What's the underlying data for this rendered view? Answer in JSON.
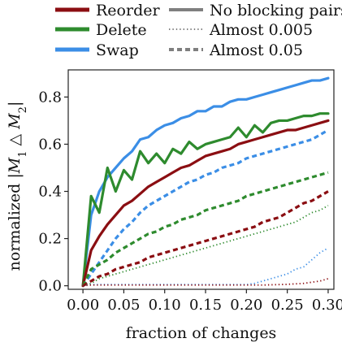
{
  "chart_data": {
    "type": "line",
    "title": "",
    "xlabel": "fraction of changes",
    "ylabel": "normalized |M_1 △ M_2|",
    "xlim": [
      -0.018,
      0.307
    ],
    "ylim": [
      -0.015,
      0.915
    ],
    "x_ticks": [
      0.0,
      0.05,
      0.1,
      0.15,
      0.2,
      0.25,
      0.3
    ],
    "x_tick_labels": [
      "0.00",
      "0.05",
      "0.10",
      "0.15",
      "0.20",
      "0.25",
      "0.30"
    ],
    "y_ticks": [
      0.0,
      0.2,
      0.4,
      0.6,
      0.8
    ],
    "y_tick_labels": [
      "0.0",
      "0.2",
      "0.4",
      "0.6",
      "0.8"
    ],
    "grid": false,
    "legend_placement": "top, outside the plot",
    "legend": [
      {
        "label": "Reorder",
        "kind": "color",
        "color": "#8b0e12"
      },
      {
        "label": "No blocking pairs",
        "kind": "style",
        "color": "#7f7f7f",
        "dash": "solid"
      },
      {
        "label": "Delete",
        "kind": "color",
        "color": "#2e8b2e"
      },
      {
        "label": "Almost 0.005",
        "kind": "style",
        "color": "#7f7f7f",
        "dash": "dotted"
      },
      {
        "label": "Swap",
        "kind": "color",
        "color": "#3b8ee6"
      },
      {
        "label": "Almost 0.05",
        "kind": "style",
        "color": "#7f7f7f",
        "dash": "dashed"
      }
    ],
    "x": [
      0.0,
      0.01,
      0.02,
      0.03,
      0.04,
      0.05,
      0.06,
      0.07,
      0.08,
      0.09,
      0.1,
      0.11,
      0.12,
      0.13,
      0.14,
      0.15,
      0.16,
      0.17,
      0.18,
      0.19,
      0.2,
      0.21,
      0.22,
      0.23,
      0.24,
      0.25,
      0.26,
      0.27,
      0.28,
      0.29,
      0.3
    ],
    "series": [
      {
        "name": "Swap",
        "group": "Swap",
        "dash": "solid",
        "color": "#3b8ee6",
        "values": [
          0.0,
          0.3,
          0.4,
          0.46,
          0.5,
          0.54,
          0.57,
          0.62,
          0.63,
          0.66,
          0.68,
          0.69,
          0.71,
          0.72,
          0.74,
          0.74,
          0.76,
          0.76,
          0.78,
          0.79,
          0.79,
          0.8,
          0.81,
          0.82,
          0.83,
          0.84,
          0.85,
          0.86,
          0.87,
          0.87,
          0.88
        ]
      },
      {
        "name": "Delete",
        "group": "Delete",
        "dash": "solid",
        "color": "#2e8b2e",
        "values": [
          0.0,
          0.38,
          0.31,
          0.5,
          0.4,
          0.49,
          0.45,
          0.57,
          0.52,
          0.56,
          0.52,
          0.58,
          0.56,
          0.61,
          0.58,
          0.6,
          0.61,
          0.62,
          0.63,
          0.67,
          0.63,
          0.68,
          0.65,
          0.69,
          0.7,
          0.7,
          0.71,
          0.72,
          0.72,
          0.73,
          0.73
        ]
      },
      {
        "name": "Reorder",
        "group": "Reorder",
        "dash": "solid",
        "color": "#8b0e12",
        "values": [
          0.0,
          0.15,
          0.21,
          0.26,
          0.3,
          0.34,
          0.36,
          0.39,
          0.42,
          0.44,
          0.46,
          0.48,
          0.5,
          0.51,
          0.53,
          0.55,
          0.56,
          0.57,
          0.58,
          0.6,
          0.61,
          0.62,
          0.63,
          0.64,
          0.65,
          0.66,
          0.66,
          0.67,
          0.68,
          0.69,
          0.7
        ]
      },
      {
        "name": "Swap – Almost 0.05",
        "group": "Swap",
        "dash": "dashed",
        "color": "#3b8ee6",
        "values": [
          0.0,
          0.05,
          0.1,
          0.15,
          0.2,
          0.24,
          0.27,
          0.31,
          0.34,
          0.36,
          0.38,
          0.4,
          0.42,
          0.44,
          0.45,
          0.47,
          0.48,
          0.5,
          0.51,
          0.52,
          0.54,
          0.55,
          0.56,
          0.57,
          0.58,
          0.59,
          0.6,
          0.61,
          0.62,
          0.64,
          0.66
        ]
      },
      {
        "name": "Delete – Almost 0.05",
        "group": "Delete",
        "dash": "dashed",
        "color": "#2e8b2e",
        "values": [
          0.0,
          0.07,
          0.09,
          0.11,
          0.14,
          0.16,
          0.18,
          0.2,
          0.22,
          0.23,
          0.25,
          0.26,
          0.28,
          0.29,
          0.3,
          0.32,
          0.33,
          0.34,
          0.35,
          0.36,
          0.38,
          0.39,
          0.4,
          0.41,
          0.42,
          0.43,
          0.44,
          0.45,
          0.46,
          0.47,
          0.48
        ]
      },
      {
        "name": "Reorder – Almost 0.05",
        "group": "Reorder",
        "dash": "dashed",
        "color": "#8b0e12",
        "values": [
          0.0,
          0.02,
          0.04,
          0.05,
          0.07,
          0.08,
          0.09,
          0.1,
          0.12,
          0.13,
          0.14,
          0.15,
          0.16,
          0.17,
          0.18,
          0.19,
          0.2,
          0.21,
          0.22,
          0.23,
          0.24,
          0.25,
          0.27,
          0.28,
          0.29,
          0.31,
          0.33,
          0.35,
          0.36,
          0.38,
          0.4
        ]
      },
      {
        "name": "Delete – Almost 0.005",
        "group": "Delete",
        "dash": "dotted",
        "color": "#2e8b2e",
        "values": [
          0.0,
          0.01,
          0.03,
          0.04,
          0.05,
          0.06,
          0.07,
          0.08,
          0.09,
          0.1,
          0.11,
          0.12,
          0.13,
          0.14,
          0.15,
          0.16,
          0.17,
          0.18,
          0.19,
          0.2,
          0.21,
          0.22,
          0.23,
          0.24,
          0.25,
          0.26,
          0.27,
          0.29,
          0.31,
          0.32,
          0.34
        ]
      },
      {
        "name": "Swap – Almost 0.005",
        "group": "Swap",
        "dash": "dotted",
        "color": "#3b8ee6",
        "values": [
          0.0,
          0.005,
          0.005,
          0.005,
          0.005,
          0.005,
          0.005,
          0.005,
          0.005,
          0.005,
          0.005,
          0.005,
          0.005,
          0.005,
          0.005,
          0.005,
          0.005,
          0.005,
          0.005,
          0.005,
          0.005,
          0.01,
          0.02,
          0.03,
          0.04,
          0.05,
          0.07,
          0.08,
          0.11,
          0.14,
          0.16
        ]
      },
      {
        "name": "Reorder – Almost 0.005",
        "group": "Reorder",
        "dash": "dotted",
        "color": "#8b0e12",
        "values": [
          0.0,
          0.003,
          0.003,
          0.003,
          0.003,
          0.003,
          0.003,
          0.003,
          0.003,
          0.003,
          0.003,
          0.003,
          0.003,
          0.003,
          0.003,
          0.003,
          0.003,
          0.003,
          0.003,
          0.003,
          0.003,
          0.003,
          0.003,
          0.004,
          0.005,
          0.006,
          0.008,
          0.01,
          0.015,
          0.02,
          0.03
        ]
      }
    ]
  }
}
